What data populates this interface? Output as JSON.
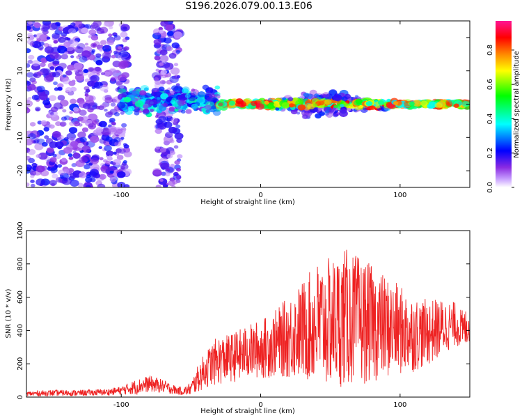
{
  "title": "S196.2026.079.00.13.E06",
  "colors": {
    "axis": "#000000",
    "snr_line": "#ee2222"
  },
  "chart_data": [
    {
      "type": "heatmap",
      "name": "spectrogram",
      "xlabel": "Height of straight line (km)",
      "ylabel": "Frequency (Hz)",
      "xlim": [
        -168,
        150
      ],
      "ylim": [
        -25,
        25
      ],
      "xticks": [
        -100,
        0,
        100
      ],
      "yticks": [
        -20,
        -10,
        0,
        10,
        20
      ],
      "xtick_labels": [
        "-100",
        "0",
        "100"
      ],
      "ytick_labels": [
        "-20",
        "-10",
        "0",
        "10",
        "20"
      ],
      "colorbar": {
        "label": "Normalized spectral amplitude",
        "range": [
          0.0,
          0.97
        ],
        "ticks": [
          0.0,
          0.2,
          0.4,
          0.6,
          0.8
        ],
        "tick_labels": [
          "0.0",
          "0.2",
          "0.4",
          "0.6",
          "0.8"
        ],
        "colormap": [
          "#ffffff",
          "#b070ff",
          "#6600ee",
          "#0000ff",
          "#00ffff",
          "#00ff00",
          "#ffff00",
          "#ff8800",
          "#ff0000",
          "#ff1493"
        ]
      },
      "regions": [
        {
          "description": "broad noise",
          "x": [
            -168,
            -95
          ],
          "f": [
            -25,
            25
          ],
          "amplitude": 0.1
        },
        {
          "description": "noise column",
          "x": [
            -75,
            -58
          ],
          "f": [
            -25,
            25
          ],
          "amplitude": 0.1
        },
        {
          "description": "emerging signal",
          "x": [
            -100,
            -30
          ],
          "f": [
            -6,
            8
          ],
          "amplitude": 0.3
        },
        {
          "description": "signal band",
          "x": [
            -30,
            150
          ],
          "f": [
            -2,
            2
          ],
          "amplitude": 0.8
        }
      ]
    },
    {
      "type": "line",
      "name": "snr",
      "xlabel": "Height of straight line (km)",
      "ylabel": "SNR (10 * v/v)",
      "xlim": [
        -168,
        150
      ],
      "ylim": [
        0,
        1000
      ],
      "xticks": [
        -100,
        0,
        100
      ],
      "yticks": [
        0,
        200,
        400,
        600,
        800,
        1000
      ],
      "xtick_labels": [
        "-100",
        "0",
        "100"
      ],
      "ytick_labels": [
        "0",
        "200",
        "400",
        "600",
        "800",
        "1000"
      ],
      "series": [
        {
          "name": "SNR",
          "color": "#ee2222",
          "x": [
            -168,
            -150,
            -130,
            -110,
            -100,
            -90,
            -80,
            -70,
            -60,
            -55,
            -50,
            -45,
            -40,
            -35,
            -30,
            -25,
            -20,
            -15,
            -10,
            -5,
            0,
            5,
            10,
            15,
            20,
            25,
            30,
            35,
            40,
            45,
            50,
            55,
            60,
            65,
            70,
            75,
            80,
            85,
            90,
            95,
            100,
            105,
            110,
            115,
            120,
            125,
            130,
            135,
            140,
            145,
            150
          ],
          "y": [
            20,
            25,
            25,
            30,
            40,
            60,
            80,
            65,
            40,
            35,
            50,
            110,
            160,
            200,
            220,
            230,
            240,
            250,
            270,
            280,
            290,
            300,
            320,
            340,
            360,
            380,
            400,
            420,
            440,
            440,
            450,
            460,
            480,
            470,
            460,
            450,
            440,
            430,
            420,
            410,
            400,
            390,
            380,
            380,
            390,
            400,
            420,
            430,
            440,
            400,
            440
          ],
          "amplitude": [
            15,
            18,
            18,
            20,
            25,
            45,
            50,
            40,
            25,
            25,
            40,
            80,
            110,
            130,
            150,
            140,
            150,
            160,
            160,
            170,
            180,
            190,
            200,
            220,
            250,
            270,
            300,
            330,
            380,
            380,
            390,
            400,
            420,
            400,
            390,
            370,
            350,
            330,
            310,
            290,
            270,
            250,
            230,
            210,
            200,
            190,
            170,
            150,
            130,
            120,
            110
          ]
        }
      ]
    }
  ]
}
